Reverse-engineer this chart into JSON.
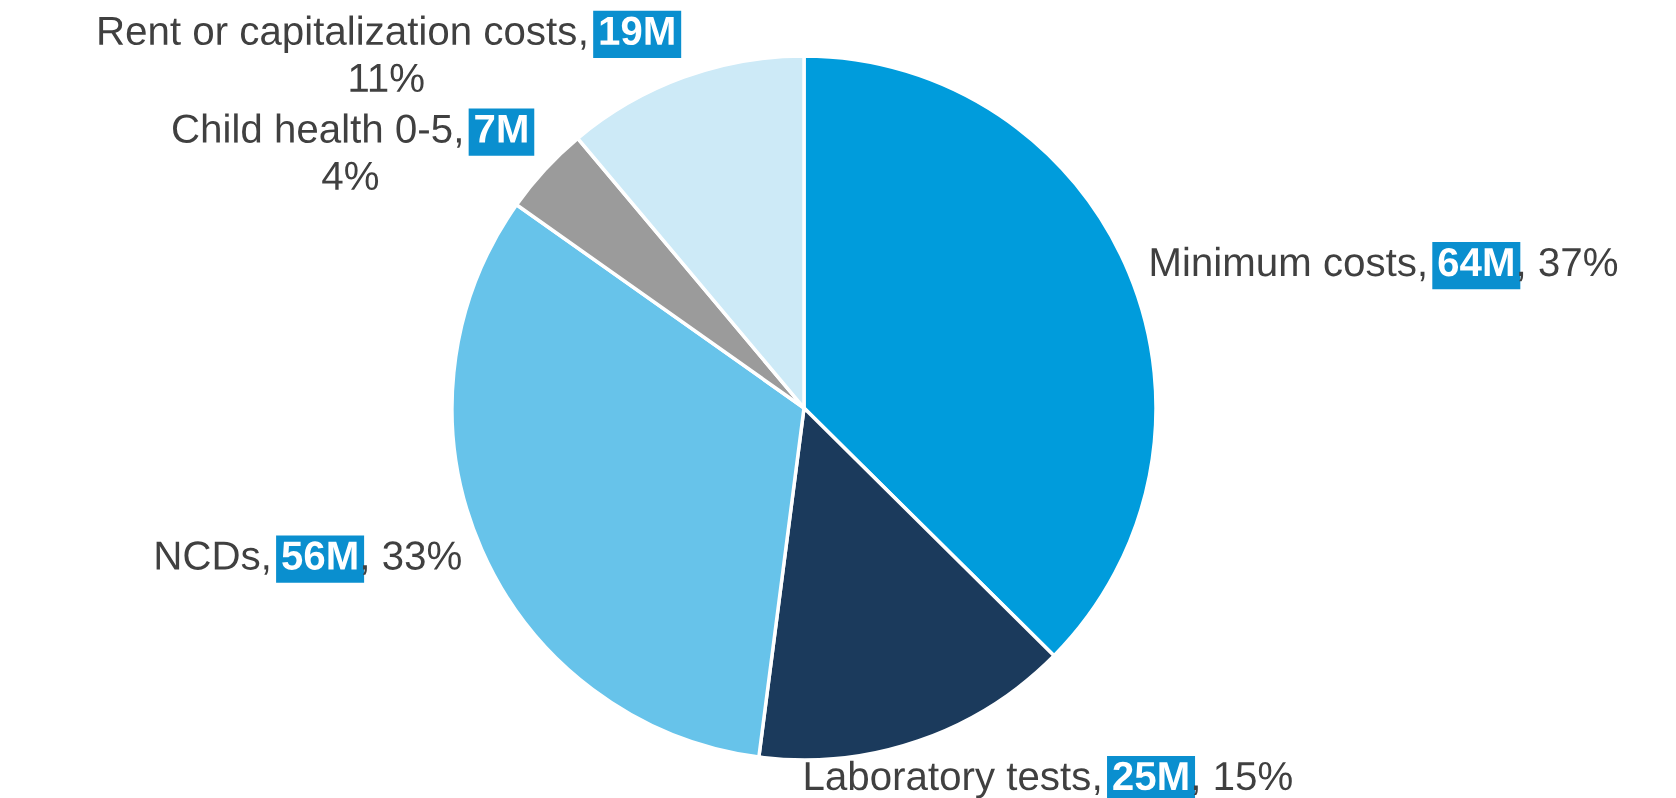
{
  "chart_data": {
    "type": "pie",
    "categories": [
      "Minimum costs",
      "Laboratory tests",
      "NCDs",
      "Child health 0-5",
      "Rent or capitalization costs"
    ],
    "values": [
      64,
      25,
      56,
      7,
      19
    ],
    "colors": [
      "#009cdc",
      "#1b3a5c",
      "#67c3ea",
      "#9b9b9b",
      "#cdeaf7"
    ],
    "value_labels": [
      ", 64M",
      ", 25M",
      ", 56M",
      ", 7M",
      ", 19M"
    ],
    "annotations": [
      ", 37%",
      ", 15%",
      ", 33%",
      "4%",
      "11%"
    ]
  }
}
